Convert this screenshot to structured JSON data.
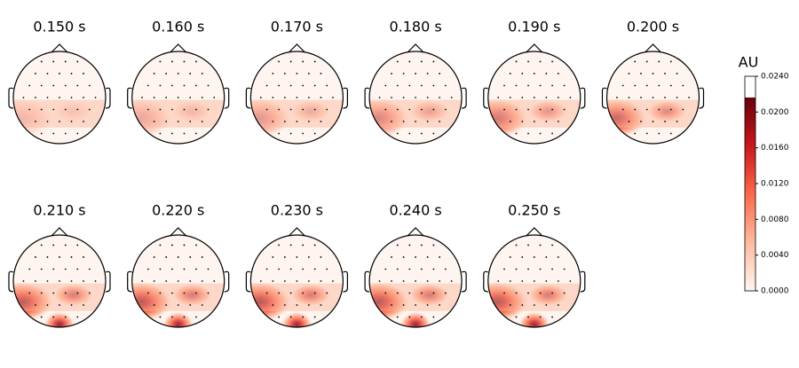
{
  "chart_data": {
    "type": "topomap",
    "maps": [
      {
        "title": "0.150 s"
      },
      {
        "title": "0.160 s"
      },
      {
        "title": "0.170 s"
      },
      {
        "title": "0.180 s"
      },
      {
        "title": "0.190 s"
      },
      {
        "title": "0.200 s"
      },
      {
        "title": "0.210 s"
      },
      {
        "title": "0.220 s"
      },
      {
        "title": "0.230 s"
      },
      {
        "title": "0.240 s"
      },
      {
        "title": "0.250 s"
      }
    ],
    "colorbar_label": "AU",
    "ylim": [
      0,
      0.024
    ],
    "yticks": [
      {
        "value": 0,
        "label": "0.0000"
      },
      {
        "value": 0.004,
        "label": "0.0040"
      },
      {
        "value": 0.008,
        "label": "0.0080"
      },
      {
        "value": 0.012,
        "label": "0.0120"
      },
      {
        "value": 0.016,
        "label": "0.0160"
      },
      {
        "value": 0.02,
        "label": "0.0200"
      },
      {
        "value": 0.024,
        "label": "0.0240"
      }
    ],
    "colors": [
      "#fff5f0",
      "#fcbba1",
      "#fb6a4a",
      "#cb181d",
      "#67000d"
    ]
  }
}
